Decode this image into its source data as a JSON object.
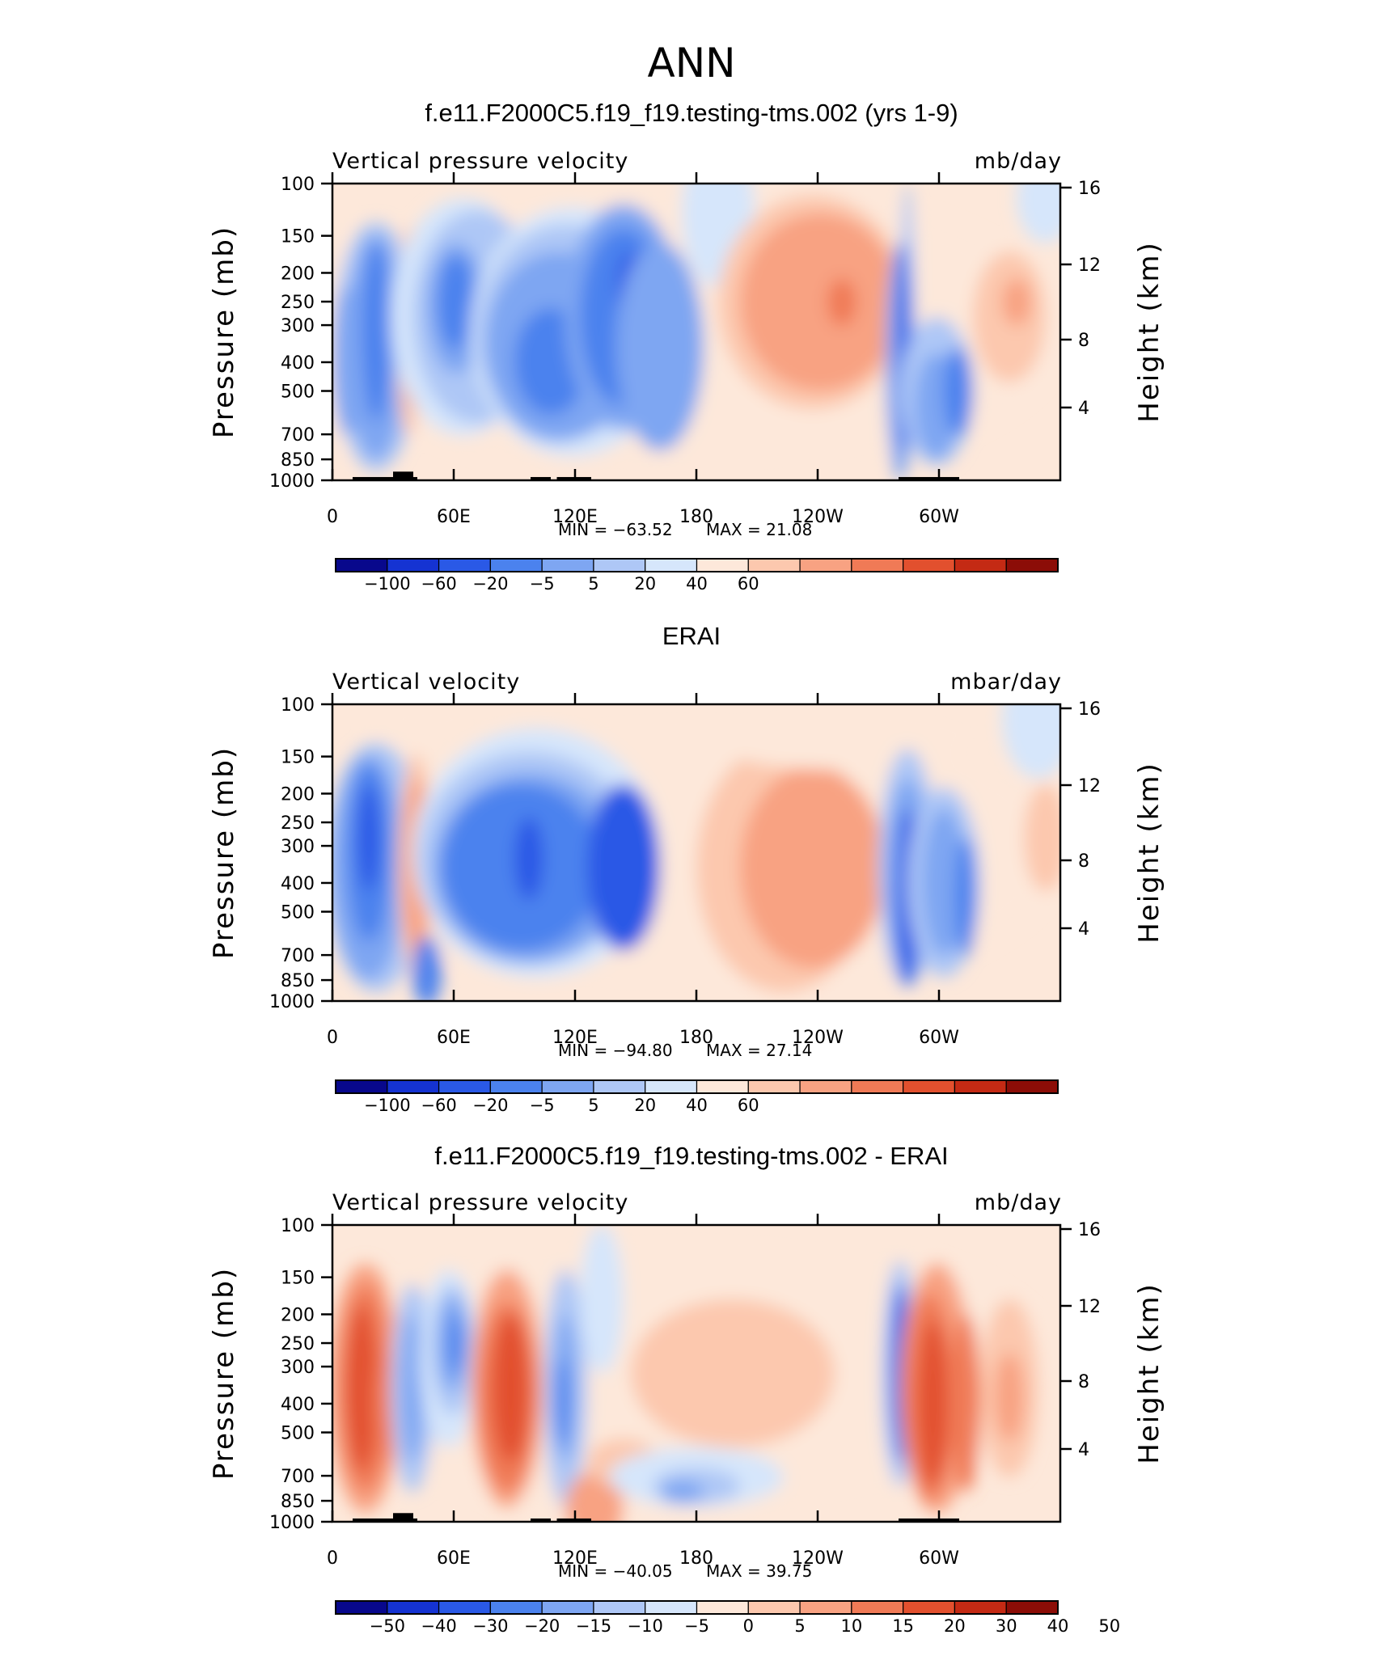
{
  "figure": {
    "title": "ANN"
  },
  "palettes": {
    "main": [
      "#08088c",
      "#1533d2",
      "#2a59e6",
      "#4b82ee",
      "#7ea6f2",
      "#aec7f6",
      "#d6e6fb",
      "#fde8da",
      "#fcc8ae",
      "#f8a282",
      "#f07a56",
      "#e2502e",
      "#c42a14",
      "#8c0d07"
    ],
    "diff": [
      "#08088c",
      "#1533d2",
      "#2a59e6",
      "#4b82ee",
      "#7ea6f2",
      "#aec7f6",
      "#d6e6fb",
      "#fde8da",
      "#fcc8ae",
      "#f8a282",
      "#f07a56",
      "#e2502e",
      "#c42a14",
      "#8c0d07"
    ]
  },
  "panels": [
    {
      "id": "test",
      "title": "f.e11.F2000C5.f19_f19.testing-tms.002 (yrs 1-9)",
      "left_label": "Vertical pressure velocity",
      "right_label": "mb/day",
      "min_label": "MIN = −63.52",
      "max_label": "MAX =   21.08",
      "colorbar_labels": [
        "−100",
        "−60",
        "−20",
        "−5",
        "5",
        "20",
        "40",
        "60"
      ],
      "show_topography": true
    },
    {
      "id": "obs",
      "title": "ERAI",
      "left_label": "Vertical velocity",
      "right_label": "mbar/day",
      "min_label": "MIN = −94.80",
      "max_label": "MAX =   27.14",
      "colorbar_labels": [
        "−100",
        "−60",
        "−20",
        "−5",
        "5",
        "20",
        "40",
        "60"
      ],
      "show_topography": false
    },
    {
      "id": "diff",
      "title": "f.e11.F2000C5.f19_f19.testing-tms.002 - ERAI",
      "left_label": "Vertical pressure velocity",
      "right_label": "mb/day",
      "min_label": "MIN = −40.05",
      "max_label": "MAX =   39.75",
      "colorbar_labels": [
        "−50",
        "−40",
        "−30",
        "−20",
        "−15",
        "−10",
        "−5",
        "0",
        "5",
        "10",
        "15",
        "20",
        "30",
        "40",
        "50"
      ],
      "show_topography": true
    }
  ],
  "axes": {
    "x_tick_labels": [
      "0",
      "60E",
      "120E",
      "180",
      "120W",
      "60W"
    ],
    "y_left_title": "Pressure (mb)",
    "y_left_ticks": [
      "100",
      "150",
      "200",
      "250",
      "300",
      "400",
      "500",
      "700",
      "850",
      "1000"
    ],
    "y_right_title": "Height (km)",
    "y_right_ticks": [
      "16",
      "12",
      "8",
      "4"
    ]
  },
  "chart_data": [
    {
      "type": "heatmap",
      "title": "f.e11.F2000C5.f19_f19.testing-tms.002 (yrs 1-9)",
      "xlabel": "",
      "ylabel": "Pressure (mb)",
      "y2label": "Height (km)",
      "x_range_deg": [
        0,
        360
      ],
      "y_range_mb": [
        1000,
        100
      ],
      "y_scale": "log",
      "levels": [
        -100,
        -60,
        -20,
        -5,
        5,
        20,
        40,
        60
      ],
      "min": -63.52,
      "max": 21.08,
      "features": [
        {
          "lon": 22,
          "p": 400,
          "value": -35
        },
        {
          "lon": 37,
          "p": 350,
          "value": 10
        },
        {
          "lon": 65,
          "p": 300,
          "value": -35
        },
        {
          "lon": 110,
          "p": 400,
          "value": -45
        },
        {
          "lon": 145,
          "p": 450,
          "value": -55
        },
        {
          "lon": 180,
          "p": 150,
          "value": -5
        },
        {
          "lon": 238,
          "p": 380,
          "value": 18
        },
        {
          "lon": 288,
          "p": 500,
          "value": -40
        },
        {
          "lon": 300,
          "p": 600,
          "value": -25
        },
        {
          "lon": 340,
          "p": 350,
          "value": 8
        }
      ]
    },
    {
      "type": "heatmap",
      "title": "ERAI",
      "xlabel": "",
      "ylabel": "Pressure (mb)",
      "y2label": "Height (km)",
      "x_range_deg": [
        0,
        360
      ],
      "y_range_mb": [
        1000,
        100
      ],
      "y_scale": "log",
      "levels": [
        -100,
        -60,
        -20,
        -5,
        5,
        20,
        40,
        60
      ],
      "min": -94.8,
      "max": 27.14,
      "features": [
        {
          "lon": 20,
          "p": 400,
          "value": -45
        },
        {
          "lon": 42,
          "p": 400,
          "value": 15
        },
        {
          "lon": 100,
          "p": 400,
          "value": -50
        },
        {
          "lon": 145,
          "p": 450,
          "value": -50
        },
        {
          "lon": 240,
          "p": 450,
          "value": 12
        },
        {
          "lon": 290,
          "p": 450,
          "value": -45
        },
        {
          "lon": 350,
          "p": 350,
          "value": 6
        }
      ]
    },
    {
      "type": "heatmap",
      "title": "f.e11.F2000C5.f19_f19.testing-tms.002 - ERAI",
      "xlabel": "",
      "ylabel": "Pressure (mb)",
      "y2label": "Height (km)",
      "x_range_deg": [
        0,
        360
      ],
      "y_range_mb": [
        1000,
        100
      ],
      "y_scale": "log",
      "levels": [
        -50,
        -40,
        -30,
        -20,
        -15,
        -10,
        -5,
        0,
        5,
        10,
        15,
        20,
        30,
        40,
        50
      ],
      "min": -40.05,
      "max": 39.75,
      "features": [
        {
          "lon": 18,
          "p": 450,
          "value": 25
        },
        {
          "lon": 62,
          "p": 300,
          "value": -20
        },
        {
          "lon": 90,
          "p": 450,
          "value": 25
        },
        {
          "lon": 118,
          "p": 400,
          "value": -18
        },
        {
          "lon": 200,
          "p": 350,
          "value": 8
        },
        {
          "lon": 185,
          "p": 850,
          "value": -15
        },
        {
          "lon": 282,
          "p": 400,
          "value": -25
        },
        {
          "lon": 298,
          "p": 400,
          "value": 28
        },
        {
          "lon": 335,
          "p": 400,
          "value": 10
        }
      ]
    }
  ]
}
